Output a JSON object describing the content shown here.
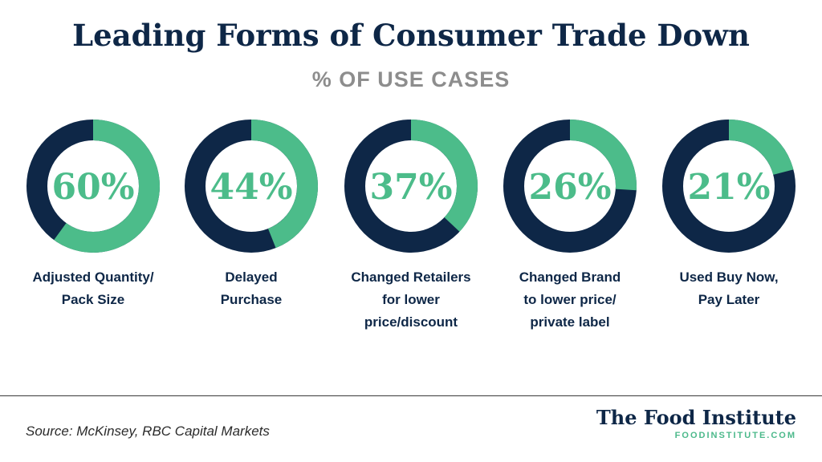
{
  "title": "Leading Forms of Consumer Trade Down",
  "subtitle": "% OF USE CASES",
  "colors": {
    "accent": "#4cbc8a",
    "dark": "#0e2747",
    "subtitle": "#8d8d8d"
  },
  "chart_data": {
    "type": "pie",
    "title": "Leading Forms of Consumer Trade Down",
    "subtitle": "% OF USE CASES",
    "categories": [
      "Adjusted Quantity/ Pack Size",
      "Delayed Purchase",
      "Changed Retailers for lower price/discount",
      "Changed Brand to lower price/ private label",
      "Used Buy Now, Pay Later"
    ],
    "values": [
      60,
      44,
      37,
      26,
      21
    ],
    "value_labels": [
      "60%",
      "44%",
      "37%",
      "26%",
      "21%"
    ],
    "label_lines": [
      [
        "Adjusted Quantity/",
        "Pack Size"
      ],
      [
        "Delayed",
        "Purchase"
      ],
      [
        "Changed Retailers",
        "for lower",
        "price/discount"
      ],
      [
        "Changed Brand",
        "to lower price/",
        "private label"
      ],
      [
        "Used Buy Now,",
        "Pay Later"
      ]
    ]
  },
  "footer": {
    "source": "Source: McKinsey, RBC Capital Markets",
    "brand_name": "The Food Institute",
    "brand_url": "FOODINSTITUTE.COM"
  }
}
